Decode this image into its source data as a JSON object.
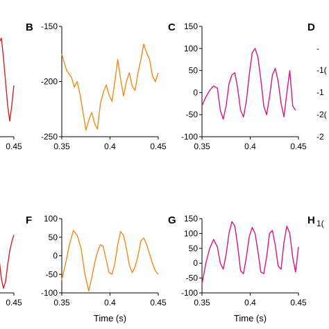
{
  "chart_data": [
    {
      "panel": "A",
      "type": "line",
      "color": "#d21f26",
      "x_ticks": [
        "0.45"
      ],
      "xlim": [
        0.35,
        0.45
      ],
      "y_ticks": [],
      "x": [
        0.4,
        0.405,
        0.41,
        0.415,
        0.42,
        0.425,
        0.43,
        0.435,
        0.44,
        0.445,
        0.45
      ],
      "y": [
        10,
        25,
        45,
        60,
        65,
        40,
        10,
        -20,
        -40,
        -20,
        5
      ],
      "ylim": [
        -60,
        80
      ],
      "title": "",
      "xlabel": "",
      "ylabel": ""
    },
    {
      "panel": "B",
      "type": "line",
      "color": "#f08a1a",
      "x_ticks": [
        "0.35",
        "0.4",
        "0.45"
      ],
      "y_ticks": [
        "-150",
        "-200",
        "-250"
      ],
      "xlim": [
        0.35,
        0.45
      ],
      "ylim": [
        -250,
        -150
      ],
      "x": [
        0.35,
        0.355,
        0.36,
        0.363,
        0.366,
        0.369,
        0.372,
        0.375,
        0.378,
        0.381,
        0.384,
        0.387,
        0.39,
        0.393,
        0.396,
        0.399,
        0.402,
        0.405,
        0.408,
        0.411,
        0.414,
        0.417,
        0.42,
        0.423,
        0.426,
        0.429,
        0.432,
        0.435,
        0.438,
        0.441,
        0.444,
        0.447,
        0.45
      ],
      "y": [
        -175,
        -190,
        -196,
        -205,
        -200,
        -212,
        -228,
        -244,
        -235,
        -228,
        -238,
        -243,
        -220,
        -210,
        -203,
        -212,
        -218,
        -200,
        -180,
        -198,
        -213,
        -200,
        -192,
        -204,
        -208,
        -192,
        -180,
        -166,
        -174,
        -180,
        -195,
        -200,
        -192
      ],
      "title": "",
      "xlabel": "",
      "ylabel": ""
    },
    {
      "panel": "C",
      "type": "line",
      "color": "#d6157d",
      "x_ticks": [
        "0.35",
        "0.4",
        "0.45"
      ],
      "y_ticks": [
        "150",
        "100",
        "50",
        "0",
        "-50",
        "-100"
      ],
      "xlim": [
        0.35,
        0.45
      ],
      "ylim": [
        -100,
        150
      ],
      "x": [
        0.35,
        0.354,
        0.358,
        0.362,
        0.366,
        0.369,
        0.372,
        0.375,
        0.378,
        0.381,
        0.384,
        0.387,
        0.39,
        0.393,
        0.396,
        0.399,
        0.402,
        0.405,
        0.408,
        0.411,
        0.414,
        0.417,
        0.42,
        0.423,
        0.426,
        0.429,
        0.432,
        0.435,
        0.438,
        0.441,
        0.444,
        0.447
      ],
      "y": [
        -30,
        -10,
        5,
        15,
        10,
        -40,
        -60,
        -30,
        20,
        40,
        45,
        10,
        -40,
        -55,
        -20,
        40,
        90,
        100,
        80,
        30,
        -30,
        -50,
        -10,
        40,
        55,
        25,
        -25,
        -55,
        0,
        50,
        -30,
        -40
      ],
      "title": "",
      "xlabel": "",
      "ylabel": ""
    },
    {
      "panel": "D",
      "type": "line",
      "color": "#000000",
      "y_ticks": [
        "-",
        "-1(",
        "-1",
        "-2(",
        "-2"
      ],
      "x_ticks": [],
      "x": [],
      "y": [],
      "title": "",
      "xlabel": "",
      "ylabel": ""
    },
    {
      "panel": "E",
      "type": "line",
      "color": "#d21f26",
      "x_ticks": [
        "0.45"
      ],
      "xlim": [
        0.35,
        0.45
      ],
      "y_ticks": [],
      "x": [
        0.4,
        0.405,
        0.41,
        0.415,
        0.42,
        0.425,
        0.43,
        0.435,
        0.44,
        0.445,
        0.45
      ],
      "y": [
        10,
        30,
        20,
        0,
        -40,
        -60,
        -45,
        -10,
        20,
        40,
        55
      ],
      "ylim": [
        -70,
        90
      ],
      "title": "",
      "xlabel": "",
      "ylabel": ""
    },
    {
      "panel": "F",
      "type": "line",
      "color": "#f08a1a",
      "x_ticks": [
        "0.35",
        "0.4",
        "0.45"
      ],
      "y_ticks": [
        "100",
        "50",
        "0",
        "-50",
        "-100"
      ],
      "xlabel": "Time (s)",
      "xlim": [
        0.35,
        0.45
      ],
      "ylim": [
        -100,
        100
      ],
      "x": [
        0.35,
        0.354,
        0.358,
        0.362,
        0.366,
        0.37,
        0.374,
        0.378,
        0.381,
        0.384,
        0.387,
        0.39,
        0.393,
        0.396,
        0.399,
        0.402,
        0.405,
        0.408,
        0.411,
        0.414,
        0.417,
        0.42,
        0.423,
        0.426,
        0.429,
        0.432,
        0.435,
        0.438,
        0.441,
        0.444,
        0.447,
        0.45
      ],
      "y": [
        -65,
        -20,
        30,
        68,
        55,
        20,
        -50,
        -95,
        -60,
        -20,
        10,
        30,
        25,
        -10,
        -45,
        -50,
        -20,
        30,
        65,
        55,
        20,
        -25,
        -45,
        -30,
        0,
        40,
        48,
        30,
        5,
        -20,
        -40,
        -50
      ],
      "title": "",
      "ylabel": ""
    },
    {
      "panel": "G",
      "type": "line",
      "color": "#d6157d",
      "x_ticks": [
        "0.35",
        "0.4",
        "0.45"
      ],
      "y_ticks": [
        "150",
        "100",
        "50",
        "0",
        "-50",
        "-100"
      ],
      "xlabel": "Time (s)",
      "xlim": [
        0.35,
        0.45
      ],
      "ylim": [
        -100,
        150
      ],
      "x": [
        0.35,
        0.354,
        0.358,
        0.362,
        0.366,
        0.369,
        0.372,
        0.375,
        0.378,
        0.381,
        0.384,
        0.387,
        0.39,
        0.393,
        0.396,
        0.399,
        0.402,
        0.405,
        0.408,
        0.411,
        0.414,
        0.417,
        0.42,
        0.423,
        0.426,
        0.429,
        0.432,
        0.435,
        0.438,
        0.441,
        0.444,
        0.447,
        0.45
      ],
      "y": [
        -70,
        0,
        50,
        80,
        55,
        0,
        -20,
        30,
        100,
        140,
        125,
        60,
        -25,
        -35,
        20,
        90,
        120,
        100,
        40,
        -30,
        -35,
        20,
        100,
        110,
        60,
        -10,
        -20,
        70,
        125,
        100,
        20,
        -30,
        55
      ],
      "title": "",
      "ylabel": ""
    },
    {
      "panel": "H",
      "type": "line",
      "color": "#000000",
      "y_ticks": [
        "1("
      ],
      "x_ticks": [],
      "x": [],
      "y": [],
      "title": "",
      "xlabel": "",
      "ylabel": ""
    }
  ]
}
